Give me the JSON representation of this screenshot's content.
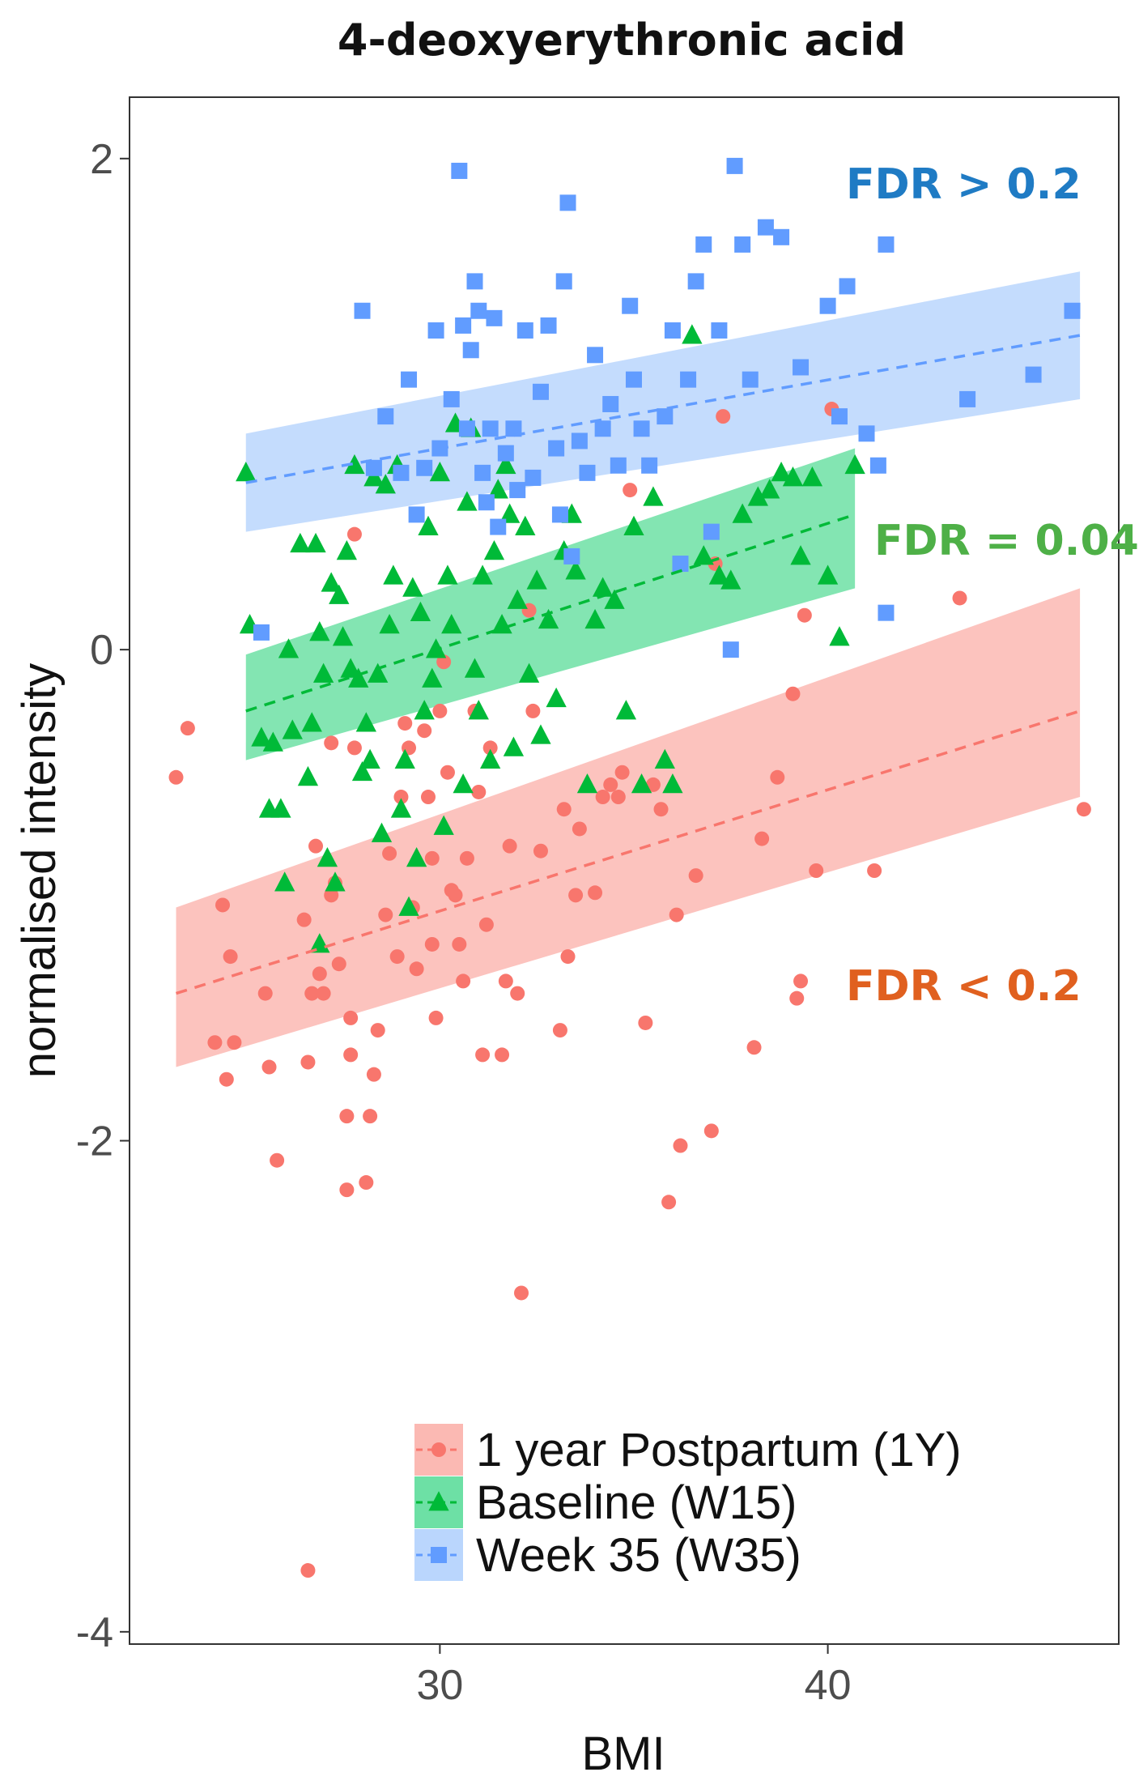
{
  "chart_data": {
    "type": "scatter",
    "title": "4-deoxyerythronic acid",
    "xlabel": "BMI",
    "ylabel": "normalised intensity",
    "xlim": [
      22,
      47.5
    ],
    "ylim": [
      -4.05,
      2.25
    ],
    "x_ticks": [
      30,
      40
    ],
    "x_tick_labels": [
      "30",
      "40"
    ],
    "y_ticks": [
      2,
      0,
      -2,
      -4
    ],
    "y_tick_labels": [
      "2",
      "0",
      "-2",
      "-4"
    ],
    "grid": false,
    "legend_position": "bottom-right",
    "series": [
      {
        "name": "1 year Postpartum (1Y)",
        "color": "#F8766D",
        "band_color": "#FBB9B3",
        "marker": "circle",
        "fit": {
          "x": [
            23.2,
            46.5
          ],
          "y": [
            -1.4,
            -0.25
          ],
          "ci_lower": [
            -1.7,
            -0.6
          ],
          "ci_upper": [
            -1.05,
            0.25
          ]
        },
        "annotation": {
          "text": "FDR < 0.2",
          "color": "#E0601F"
        },
        "points": [
          [
            23.2,
            -0.52
          ],
          [
            23.5,
            -0.32
          ],
          [
            24.4,
            -1.04
          ],
          [
            24.6,
            -1.25
          ],
          [
            24.7,
            -1.6
          ],
          [
            24.2,
            -1.6
          ],
          [
            24.5,
            -1.75
          ],
          [
            25.5,
            -1.4
          ],
          [
            25.6,
            -1.7
          ],
          [
            25.8,
            -2.08
          ],
          [
            26.5,
            -1.1
          ],
          [
            26.6,
            -1.68
          ],
          [
            26.8,
            -0.8
          ],
          [
            26.9,
            -1.32
          ],
          [
            26.7,
            -1.4
          ],
          [
            27.0,
            -1.4
          ],
          [
            27.2,
            -0.38
          ],
          [
            27.2,
            -1.0
          ],
          [
            27.3,
            -0.95
          ],
          [
            27.4,
            -1.28
          ],
          [
            27.6,
            -1.9
          ],
          [
            27.6,
            -2.2
          ],
          [
            27.7,
            -1.5
          ],
          [
            27.7,
            -1.65
          ],
          [
            27.8,
            -0.4
          ],
          [
            27.8,
            0.47
          ],
          [
            28.1,
            -2.17
          ],
          [
            28.2,
            -1.9
          ],
          [
            28.3,
            -1.73
          ],
          [
            28.4,
            -1.55
          ],
          [
            28.6,
            -1.08
          ],
          [
            28.7,
            -0.83
          ],
          [
            28.9,
            -1.25
          ],
          [
            29.0,
            -0.6
          ],
          [
            29.1,
            -0.3
          ],
          [
            29.2,
            -0.4
          ],
          [
            29.3,
            -1.05
          ],
          [
            29.4,
            -1.3
          ],
          [
            29.6,
            -0.33
          ],
          [
            29.7,
            -0.6
          ],
          [
            29.8,
            -0.85
          ],
          [
            29.8,
            -1.2
          ],
          [
            29.9,
            -1.5
          ],
          [
            30.0,
            -0.25
          ],
          [
            30.1,
            -0.05
          ],
          [
            30.2,
            -0.5
          ],
          [
            30.3,
            -0.98
          ],
          [
            30.4,
            -1.0
          ],
          [
            30.5,
            -1.2
          ],
          [
            30.6,
            -1.35
          ],
          [
            30.7,
            -0.85
          ],
          [
            30.9,
            -0.25
          ],
          [
            31.0,
            -0.58
          ],
          [
            31.1,
            -1.65
          ],
          [
            31.2,
            -1.12
          ],
          [
            31.3,
            -0.4
          ],
          [
            31.6,
            -1.65
          ],
          [
            31.7,
            -1.35
          ],
          [
            31.8,
            -0.8
          ],
          [
            32.0,
            -1.4
          ],
          [
            32.1,
            -2.62
          ],
          [
            32.3,
            0.16
          ],
          [
            32.4,
            -0.25
          ],
          [
            32.6,
            -0.82
          ],
          [
            33.1,
            -1.55
          ],
          [
            33.2,
            -0.65
          ],
          [
            33.3,
            -1.25
          ],
          [
            33.5,
            -1.0
          ],
          [
            33.6,
            -0.73
          ],
          [
            34.0,
            -0.99
          ],
          [
            34.2,
            -0.6
          ],
          [
            34.4,
            -0.55
          ],
          [
            34.7,
            -0.5
          ],
          [
            34.9,
            0.65
          ],
          [
            34.6,
            -0.6
          ],
          [
            35.3,
            -1.52
          ],
          [
            35.5,
            -0.55
          ],
          [
            35.7,
            -0.65
          ],
          [
            35.9,
            -2.25
          ],
          [
            36.1,
            -1.08
          ],
          [
            36.2,
            -2.02
          ],
          [
            36.6,
            -0.92
          ],
          [
            37.0,
            -1.96
          ],
          [
            37.1,
            0.35
          ],
          [
            37.3,
            0.95
          ],
          [
            38.1,
            -1.62
          ],
          [
            38.3,
            -0.77
          ],
          [
            38.7,
            -0.52
          ],
          [
            39.1,
            -0.18
          ],
          [
            39.2,
            -1.42
          ],
          [
            39.3,
            -1.35
          ],
          [
            39.4,
            0.14
          ],
          [
            39.7,
            -0.9
          ],
          [
            40.1,
            0.98
          ],
          [
            41.2,
            -0.9
          ],
          [
            43.4,
            0.21
          ],
          [
            46.6,
            -0.65
          ],
          [
            26.6,
            -3.75
          ]
        ]
      },
      {
        "name": "Baseline (W15)",
        "color": "#00BA38",
        "band_color": "#6DE0A5",
        "marker": "triangle",
        "fit": {
          "x": [
            25.0,
            40.7
          ],
          "y": [
            -0.25,
            0.55
          ],
          "ci_lower": [
            -0.45,
            0.25
          ],
          "ci_upper": [
            -0.02,
            0.82
          ]
        },
        "annotation": {
          "text": "FDR = 0.04",
          "color": "#4EB047"
        },
        "points": [
          [
            25.0,
            0.72
          ],
          [
            25.1,
            0.1
          ],
          [
            25.4,
            -0.36
          ],
          [
            25.6,
            -0.65
          ],
          [
            25.7,
            -0.38
          ],
          [
            25.9,
            -0.65
          ],
          [
            26.0,
            -0.95
          ],
          [
            26.1,
            0.0
          ],
          [
            26.2,
            -0.33
          ],
          [
            26.4,
            0.43
          ],
          [
            26.6,
            -0.52
          ],
          [
            26.7,
            -0.3
          ],
          [
            26.8,
            0.43
          ],
          [
            26.9,
            -1.2
          ],
          [
            26.9,
            0.07
          ],
          [
            27.0,
            -0.1
          ],
          [
            27.1,
            -0.85
          ],
          [
            27.2,
            0.27
          ],
          [
            27.3,
            -0.95
          ],
          [
            27.4,
            0.22
          ],
          [
            27.5,
            0.05
          ],
          [
            27.6,
            0.4
          ],
          [
            27.7,
            -0.08
          ],
          [
            27.8,
            0.75
          ],
          [
            27.9,
            -0.12
          ],
          [
            28.0,
            -0.5
          ],
          [
            28.1,
            -0.3
          ],
          [
            28.2,
            -0.45
          ],
          [
            28.3,
            0.7
          ],
          [
            28.4,
            -0.1
          ],
          [
            28.5,
            -0.75
          ],
          [
            28.6,
            0.67
          ],
          [
            28.7,
            0.1
          ],
          [
            28.8,
            0.3
          ],
          [
            28.9,
            0.75
          ],
          [
            29.0,
            -0.65
          ],
          [
            29.1,
            -0.45
          ],
          [
            29.2,
            -1.05
          ],
          [
            29.3,
            0.25
          ],
          [
            29.4,
            -0.85
          ],
          [
            29.5,
            0.15
          ],
          [
            29.6,
            -0.25
          ],
          [
            29.7,
            0.5
          ],
          [
            29.8,
            -0.12
          ],
          [
            29.9,
            0.0
          ],
          [
            30.0,
            0.72
          ],
          [
            30.1,
            -0.72
          ],
          [
            30.2,
            0.3
          ],
          [
            30.3,
            0.1
          ],
          [
            30.4,
            0.92
          ],
          [
            30.6,
            -0.55
          ],
          [
            30.7,
            0.6
          ],
          [
            30.8,
            0.9
          ],
          [
            30.9,
            -0.08
          ],
          [
            31.0,
            -0.25
          ],
          [
            31.1,
            0.3
          ],
          [
            31.3,
            -0.45
          ],
          [
            31.4,
            0.4
          ],
          [
            31.5,
            0.65
          ],
          [
            31.6,
            0.1
          ],
          [
            31.7,
            0.75
          ],
          [
            31.8,
            0.55
          ],
          [
            31.9,
            -0.4
          ],
          [
            32.0,
            0.2
          ],
          [
            32.2,
            0.5
          ],
          [
            32.3,
            -0.1
          ],
          [
            32.5,
            0.28
          ],
          [
            32.6,
            -0.35
          ],
          [
            32.8,
            0.12
          ],
          [
            33.0,
            -0.2
          ],
          [
            33.2,
            0.4
          ],
          [
            33.4,
            0.55
          ],
          [
            33.5,
            0.32
          ],
          [
            33.8,
            -0.55
          ],
          [
            34.0,
            0.12
          ],
          [
            34.2,
            0.25
          ],
          [
            34.5,
            0.2
          ],
          [
            34.8,
            -0.25
          ],
          [
            35.0,
            0.5
          ],
          [
            35.2,
            -0.55
          ],
          [
            35.5,
            0.62
          ],
          [
            35.8,
            -0.45
          ],
          [
            36.0,
            -0.55
          ],
          [
            36.5,
            1.28
          ],
          [
            36.8,
            0.38
          ],
          [
            37.2,
            0.3
          ],
          [
            37.5,
            0.28
          ],
          [
            37.8,
            0.55
          ],
          [
            38.2,
            0.62
          ],
          [
            38.5,
            0.65
          ],
          [
            38.8,
            0.72
          ],
          [
            39.1,
            0.7
          ],
          [
            39.3,
            0.38
          ],
          [
            39.6,
            0.7
          ],
          [
            40.0,
            0.3
          ],
          [
            40.3,
            0.05
          ],
          [
            40.7,
            0.75
          ]
        ]
      },
      {
        "name": "Week 35 (W35)",
        "color": "#619CFF",
        "band_color": "#BAD6FD",
        "marker": "square",
        "fit": {
          "x": [
            25.0,
            46.5
          ],
          "y": [
            0.68,
            1.28
          ],
          "ci_lower": [
            0.48,
            1.02
          ],
          "ci_upper": [
            0.88,
            1.54
          ]
        },
        "annotation": {
          "text": "FDR > 0.2",
          "color": "#1F7BC4"
        },
        "points": [
          [
            25.4,
            0.07
          ],
          [
            28.0,
            1.38
          ],
          [
            28.3,
            0.74
          ],
          [
            28.6,
            0.95
          ],
          [
            29.0,
            0.72
          ],
          [
            29.2,
            1.1
          ],
          [
            29.4,
            0.55
          ],
          [
            29.6,
            0.74
          ],
          [
            29.9,
            1.3
          ],
          [
            30.0,
            0.82
          ],
          [
            30.3,
            1.02
          ],
          [
            30.5,
            1.95
          ],
          [
            30.6,
            1.32
          ],
          [
            30.7,
            0.9
          ],
          [
            30.8,
            1.22
          ],
          [
            30.9,
            1.5
          ],
          [
            31.0,
            1.38
          ],
          [
            31.1,
            0.72
          ],
          [
            31.2,
            0.6
          ],
          [
            31.3,
            0.9
          ],
          [
            31.4,
            1.35
          ],
          [
            31.5,
            0.5
          ],
          [
            31.7,
            0.8
          ],
          [
            31.9,
            0.9
          ],
          [
            32.0,
            0.65
          ],
          [
            32.2,
            1.3
          ],
          [
            32.4,
            0.7
          ],
          [
            32.6,
            1.05
          ],
          [
            32.8,
            1.32
          ],
          [
            33.0,
            0.82
          ],
          [
            33.1,
            0.55
          ],
          [
            33.2,
            1.5
          ],
          [
            33.3,
            1.82
          ],
          [
            33.4,
            0.38
          ],
          [
            33.6,
            0.85
          ],
          [
            33.8,
            0.72
          ],
          [
            34.0,
            1.2
          ],
          [
            34.2,
            0.9
          ],
          [
            34.4,
            1.0
          ],
          [
            34.6,
            0.75
          ],
          [
            34.9,
            1.4
          ],
          [
            35.0,
            1.1
          ],
          [
            35.2,
            0.9
          ],
          [
            35.4,
            0.75
          ],
          [
            35.8,
            0.95
          ],
          [
            36.0,
            1.3
          ],
          [
            36.2,
            0.35
          ],
          [
            36.4,
            1.1
          ],
          [
            36.6,
            1.5
          ],
          [
            36.8,
            1.65
          ],
          [
            37.0,
            0.48
          ],
          [
            37.2,
            1.3
          ],
          [
            37.5,
            0.0
          ],
          [
            37.6,
            1.97
          ],
          [
            37.8,
            1.65
          ],
          [
            38.0,
            1.1
          ],
          [
            38.4,
            1.72
          ],
          [
            38.8,
            1.68
          ],
          [
            39.3,
            1.15
          ],
          [
            40.0,
            1.4
          ],
          [
            40.3,
            0.95
          ],
          [
            40.5,
            1.48
          ],
          [
            41.0,
            0.88
          ],
          [
            41.3,
            0.75
          ],
          [
            41.5,
            1.65
          ],
          [
            41.5,
            0.15
          ],
          [
            43.6,
            1.02
          ],
          [
            45.3,
            1.12
          ],
          [
            46.3,
            1.38
          ]
        ]
      }
    ]
  }
}
